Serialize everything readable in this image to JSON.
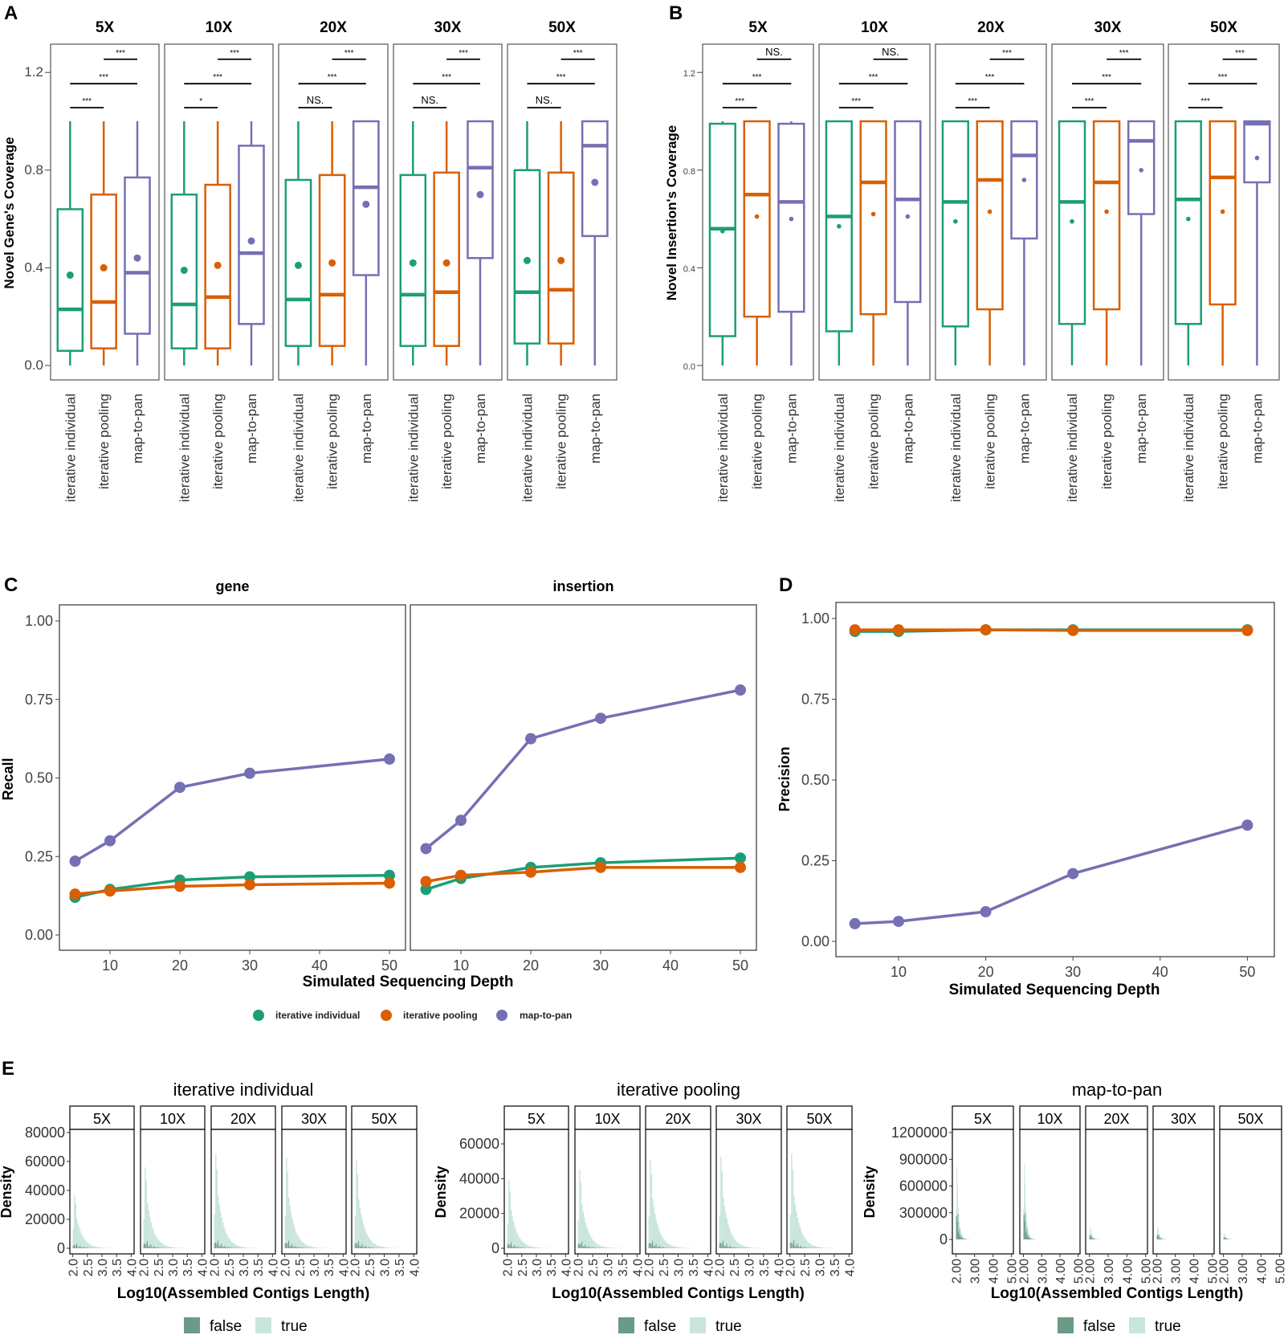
{
  "colors": {
    "iterative individual": "#1b9e77",
    "iterative pooling": "#d95f02",
    "map-to-pan": "#7570b3",
    "false": "#6b9a87",
    "true": "#c9e5dd"
  },
  "panel_labels": [
    "A",
    "B",
    "C",
    "D",
    "E"
  ],
  "methods": [
    "iterative individual",
    "iterative pooling",
    "map-to-pan"
  ],
  "chart_data": [
    {
      "id": "A",
      "type": "box",
      "ylabel": "Novel Gene's Coverage",
      "ylim": [
        -0.06,
        1.32
      ],
      "yticks": [
        "0.0",
        "0.4",
        "0.8",
        "1.2"
      ],
      "facets": [
        {
          "label": "5X",
          "sig": [
            "***",
            "***",
            "***"
          ],
          "boxes": [
            {
              "min": 0,
              "q1": 0.06,
              "median": 0.23,
              "q3": 0.64,
              "max": 1.0,
              "mean": 0.37
            },
            {
              "min": 0,
              "q1": 0.07,
              "median": 0.26,
              "q3": 0.7,
              "max": 1.0,
              "mean": 0.4
            },
            {
              "min": 0,
              "q1": 0.13,
              "median": 0.38,
              "q3": 0.77,
              "max": 1.0,
              "mean": 0.44
            }
          ]
        },
        {
          "label": "10X",
          "sig": [
            "*",
            "***",
            "***"
          ],
          "boxes": [
            {
              "min": 0,
              "q1": 0.07,
              "median": 0.25,
              "q3": 0.7,
              "max": 1.0,
              "mean": 0.39
            },
            {
              "min": 0,
              "q1": 0.07,
              "median": 0.28,
              "q3": 0.74,
              "max": 1.0,
              "mean": 0.41
            },
            {
              "min": 0,
              "q1": 0.17,
              "median": 0.46,
              "q3": 0.9,
              "max": 1.0,
              "mean": 0.51
            }
          ]
        },
        {
          "label": "20X",
          "sig": [
            "NS.",
            "***",
            "***"
          ],
          "boxes": [
            {
              "min": 0,
              "q1": 0.08,
              "median": 0.27,
              "q3": 0.76,
              "max": 1.0,
              "mean": 0.41
            },
            {
              "min": 0,
              "q1": 0.08,
              "median": 0.29,
              "q3": 0.78,
              "max": 1.0,
              "mean": 0.42
            },
            {
              "min": 0,
              "q1": 0.37,
              "median": 0.73,
              "q3": 1.0,
              "max": 1.0,
              "mean": 0.66
            }
          ]
        },
        {
          "label": "30X",
          "sig": [
            "NS.",
            "***",
            "***"
          ],
          "boxes": [
            {
              "min": 0,
              "q1": 0.08,
              "median": 0.29,
              "q3": 0.78,
              "max": 1.0,
              "mean": 0.42
            },
            {
              "min": 0,
              "q1": 0.08,
              "median": 0.3,
              "q3": 0.79,
              "max": 1.0,
              "mean": 0.42
            },
            {
              "min": 0,
              "q1": 0.44,
              "median": 0.81,
              "q3": 1.0,
              "max": 1.0,
              "mean": 0.7
            }
          ]
        },
        {
          "label": "50X",
          "sig": [
            "NS.",
            "***",
            "***"
          ],
          "boxes": [
            {
              "min": 0,
              "q1": 0.09,
              "median": 0.3,
              "q3": 0.8,
              "max": 1.0,
              "mean": 0.43
            },
            {
              "min": 0,
              "q1": 0.09,
              "median": 0.31,
              "q3": 0.79,
              "max": 1.0,
              "mean": 0.43
            },
            {
              "min": 0,
              "q1": 0.53,
              "median": 0.9,
              "q3": 1.0,
              "max": 1.0,
              "mean": 0.75
            }
          ]
        }
      ]
    },
    {
      "id": "B",
      "type": "box",
      "ylabel": "Novel Insertion's Coverage",
      "ylim": [
        -0.06,
        1.32
      ],
      "yticks": [
        "0.0",
        "0.4",
        "0.8",
        "1.2"
      ],
      "facets": [
        {
          "label": "5X",
          "sig": [
            "***",
            "***",
            "NS."
          ],
          "boxes": [
            {
              "min": 0,
              "q1": 0.12,
              "median": 0.56,
              "q3": 0.99,
              "max": 1.0,
              "mean": 0.55
            },
            {
              "min": 0,
              "q1": 0.2,
              "median": 0.7,
              "q3": 1.0,
              "max": 1.0,
              "mean": 0.61
            },
            {
              "min": 0,
              "q1": 0.22,
              "median": 0.67,
              "q3": 0.99,
              "max": 1.0,
              "mean": 0.6
            }
          ]
        },
        {
          "label": "10X",
          "sig": [
            "***",
            "***",
            "NS."
          ],
          "boxes": [
            {
              "min": 0,
              "q1": 0.14,
              "median": 0.61,
              "q3": 1.0,
              "max": 1.0,
              "mean": 0.57
            },
            {
              "min": 0,
              "q1": 0.21,
              "median": 0.75,
              "q3": 1.0,
              "max": 1.0,
              "mean": 0.62
            },
            {
              "min": 0,
              "q1": 0.26,
              "median": 0.68,
              "q3": 1.0,
              "max": 1.0,
              "mean": 0.61
            }
          ]
        },
        {
          "label": "20X",
          "sig": [
            "***",
            "***",
            "***"
          ],
          "boxes": [
            {
              "min": 0,
              "q1": 0.16,
              "median": 0.67,
              "q3": 1.0,
              "max": 1.0,
              "mean": 0.59
            },
            {
              "min": 0,
              "q1": 0.23,
              "median": 0.76,
              "q3": 1.0,
              "max": 1.0,
              "mean": 0.63
            },
            {
              "min": 0,
              "q1": 0.52,
              "median": 0.86,
              "q3": 1.0,
              "max": 1.0,
              "mean": 0.76
            }
          ]
        },
        {
          "label": "30X",
          "sig": [
            "***",
            "***",
            "***"
          ],
          "boxes": [
            {
              "min": 0,
              "q1": 0.17,
              "median": 0.67,
              "q3": 1.0,
              "max": 1.0,
              "mean": 0.59
            },
            {
              "min": 0,
              "q1": 0.23,
              "median": 0.75,
              "q3": 1.0,
              "max": 1.0,
              "mean": 0.63
            },
            {
              "min": 0,
              "q1": 0.62,
              "median": 0.92,
              "q3": 1.0,
              "max": 1.0,
              "mean": 0.8
            }
          ]
        },
        {
          "label": "50X",
          "sig": [
            "***",
            "***",
            "***"
          ],
          "boxes": [
            {
              "min": 0,
              "q1": 0.17,
              "median": 0.68,
              "q3": 1.0,
              "max": 1.0,
              "mean": 0.6
            },
            {
              "min": 0,
              "q1": 0.25,
              "median": 0.77,
              "q3": 1.0,
              "max": 1.0,
              "mean": 0.63
            },
            {
              "min": 0,
              "q1": 0.75,
              "median": 0.99,
              "q3": 1.0,
              "max": 1.0,
              "mean": 0.85
            }
          ]
        }
      ]
    },
    {
      "id": "C",
      "type": "line",
      "ylabel": "Recall",
      "xlabel": "Simulated Sequencing Depth",
      "ylim": [
        -0.05,
        1.05
      ],
      "xlim": [
        3,
        52
      ],
      "yticks": [
        "0.00",
        "0.25",
        "0.50",
        "0.75",
        "1.00"
      ],
      "xticks": [
        "10",
        "20",
        "30",
        "40",
        "50"
      ],
      "x": [
        5,
        10,
        20,
        30,
        50
      ],
      "facets": [
        {
          "label": "gene",
          "series": [
            {
              "name": "iterative individual",
              "values": [
                0.12,
                0.145,
                0.175,
                0.185,
                0.19
              ]
            },
            {
              "name": "iterative pooling",
              "values": [
                0.13,
                0.14,
                0.155,
                0.16,
                0.165
              ]
            },
            {
              "name": "map-to-pan",
              "values": [
                0.235,
                0.3,
                0.47,
                0.515,
                0.56
              ]
            }
          ]
        },
        {
          "label": "insertion",
          "series": [
            {
              "name": "iterative individual",
              "values": [
                0.145,
                0.18,
                0.215,
                0.23,
                0.245
              ]
            },
            {
              "name": "iterative pooling",
              "values": [
                0.17,
                0.19,
                0.2,
                0.215,
                0.215
              ]
            },
            {
              "name": "map-to-pan",
              "values": [
                0.275,
                0.365,
                0.625,
                0.69,
                0.78
              ]
            }
          ]
        }
      ],
      "legend": {
        "position": "bottom",
        "entries": [
          "iterative individual",
          "iterative pooling",
          "map-to-pan"
        ]
      }
    },
    {
      "id": "D",
      "type": "line",
      "ylabel": "Precision",
      "xlabel": "Simulated Sequencing Depth",
      "ylim": [
        -0.05,
        1.05
      ],
      "xlim": [
        3,
        52
      ],
      "yticks": [
        "0.00",
        "0.25",
        "0.50",
        "0.75",
        "1.00"
      ],
      "xticks": [
        "10",
        "20",
        "30",
        "40",
        "50"
      ],
      "x": [
        5,
        10,
        20,
        30,
        50
      ],
      "series": [
        {
          "name": "iterative individual",
          "values": [
            0.96,
            0.96,
            0.965,
            0.965,
            0.965
          ]
        },
        {
          "name": "iterative pooling",
          "values": [
            0.965,
            0.965,
            0.965,
            0.963,
            0.963
          ]
        },
        {
          "name": "map-to-pan",
          "values": [
            0.055,
            0.062,
            0.092,
            0.21,
            0.36
          ]
        }
      ]
    },
    {
      "id": "E",
      "type": "histogram",
      "ylabel": "Density",
      "xlabel": "Log10(Assembled Contigs Length)",
      "legend": [
        "false",
        "true"
      ],
      "groups": [
        {
          "title": "iterative individual",
          "ymax": 80000,
          "yticks": [
            "0",
            "20000",
            "40000",
            "60000",
            "80000"
          ],
          "xrange": [
            1.9,
            4.1
          ],
          "xticks": [
            "2.0",
            "2.5",
            "3.0",
            "3.5",
            "4.0"
          ],
          "facets": [
            {
              "label": "5X",
              "peak": 44000
            },
            {
              "label": "10X",
              "peak": 67000
            },
            {
              "label": "20X",
              "peak": 78000
            },
            {
              "label": "30X",
              "peak": 75000
            },
            {
              "label": "50X",
              "peak": 73000
            }
          ],
          "false_share": 0.15
        },
        {
          "title": "iterative pooling",
          "ymax": 60000,
          "yticks": [
            "0",
            "20000",
            "40000",
            "60000"
          ],
          "xrange": [
            1.9,
            4.1
          ],
          "xticks": [
            "2.0",
            "2.5",
            "3.0",
            "3.5",
            "4.0"
          ],
          "facets": [
            {
              "label": "5X",
              "peak": 47000
            },
            {
              "label": "10X",
              "peak": 54000
            },
            {
              "label": "20X",
              "peak": 61000
            },
            {
              "label": "30X",
              "peak": 63000
            },
            {
              "label": "50X",
              "peak": 65000
            }
          ],
          "false_share": 0.15
        },
        {
          "title": "map-to-pan",
          "ymax": 1200000,
          "yticks": [
            "0",
            "300000",
            "600000",
            "900000",
            "1200000"
          ],
          "xrange": [
            1.8,
            5.1
          ],
          "xticks": [
            "2.00",
            "3.00",
            "4.00",
            "5.00"
          ],
          "facets": [
            {
              "label": "5X",
              "peak": 1100000
            },
            {
              "label": "10X",
              "peak": 1150000
            },
            {
              "label": "20X",
              "peak": 180000
            },
            {
              "label": "30X",
              "peak": 200000
            },
            {
              "label": "50X",
              "peak": 90000
            }
          ],
          "false_share": 0.8
        }
      ]
    }
  ]
}
